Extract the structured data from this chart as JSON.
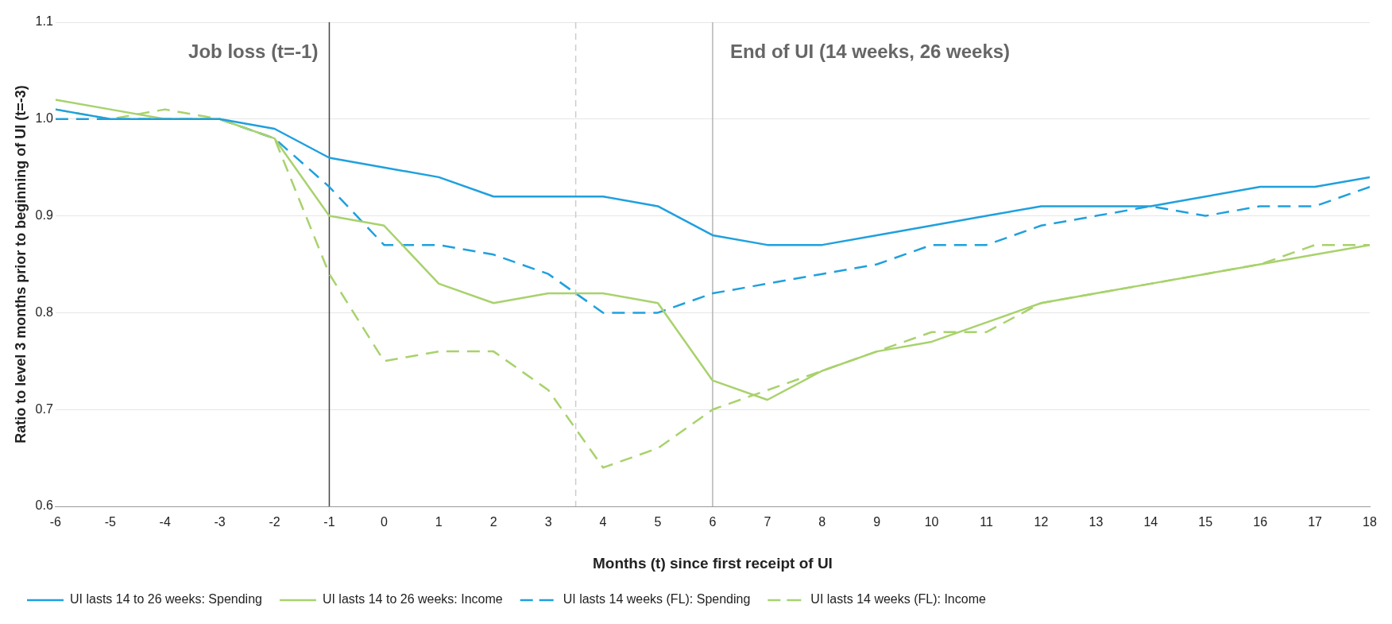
{
  "chart_data": {
    "type": "line",
    "xlabel": "Months (t) since first receipt of UI",
    "ylabel": "Ratio to level 3 months prior to beginning of UI (t=-3)",
    "x": [
      -6,
      -5,
      -4,
      -3,
      -2,
      -1,
      0,
      1,
      2,
      3,
      4,
      5,
      6,
      7,
      8,
      9,
      10,
      11,
      12,
      13,
      14,
      15,
      16,
      17,
      18
    ],
    "xlim": [
      -6,
      18
    ],
    "xticks": [
      -6,
      -5,
      -4,
      -3,
      -2,
      -1,
      0,
      1,
      2,
      3,
      4,
      5,
      6,
      7,
      8,
      9,
      10,
      11,
      12,
      13,
      14,
      15,
      16,
      17,
      18
    ],
    "ylim": [
      0.6,
      1.1
    ],
    "yticks": [
      0.6,
      0.7,
      0.8,
      0.9,
      {
        "value": 1,
        "label": "1.0"
      },
      1.1
    ],
    "grid": "y",
    "legend": "bottom",
    "marker": "none",
    "series": [
      {
        "name": "UI lasts 14 to 26 weeks: Spending",
        "color": "#1fa0de",
        "line_style": "solid",
        "values": [
          1.01,
          1.0,
          1.0,
          1.0,
          0.99,
          0.96,
          0.95,
          0.94,
          0.92,
          0.92,
          0.92,
          0.91,
          0.88,
          0.87,
          0.87,
          0.88,
          0.89,
          0.9,
          0.91,
          0.91,
          0.91,
          0.92,
          0.93,
          0.93,
          0.94
        ]
      },
      {
        "name": "UI lasts 14 to 26 weeks: Income",
        "color": "#a8d26c",
        "line_style": "solid",
        "values": [
          1.02,
          1.01,
          1.0,
          1.0,
          0.98,
          0.9,
          0.89,
          0.83,
          0.81,
          0.82,
          0.82,
          0.81,
          0.73,
          0.71,
          0.74,
          0.76,
          0.77,
          0.79,
          0.81,
          0.82,
          0.83,
          0.84,
          0.85,
          0.86,
          0.87
        ]
      },
      {
        "name": "UI lasts 14 weeks (FL): Spending",
        "color": "#1fa0de",
        "line_style": "dashed",
        "values": [
          1.0,
          1.0,
          1.0,
          1.0,
          0.98,
          0.93,
          0.87,
          0.87,
          0.86,
          0.84,
          0.8,
          0.8,
          0.82,
          0.83,
          0.84,
          0.85,
          0.87,
          0.87,
          0.89,
          0.9,
          0.91,
          0.9,
          0.91,
          0.91,
          0.93
        ]
      },
      {
        "name": "UI lasts 14 weeks (FL): Income",
        "color": "#a8d26c",
        "line_style": "dashed",
        "values": [
          1.01,
          1.0,
          1.01,
          1.0,
          0.98,
          0.84,
          0.75,
          0.76,
          0.76,
          0.72,
          0.64,
          0.66,
          0.7,
          0.72,
          0.74,
          0.76,
          0.78,
          0.78,
          0.81,
          0.82,
          0.83,
          0.84,
          0.85,
          0.87,
          0.87
        ]
      }
    ],
    "ref_lines": [
      {
        "axis": "x",
        "value": -1,
        "label": "Job loss (t=-1)",
        "color": "#444444",
        "line_style": "solid"
      },
      {
        "axis": "x",
        "value": 3.5,
        "color": "#cccccc",
        "line_style": "dashed"
      },
      {
        "axis": "x",
        "value": 6,
        "label": "End of UI (14 weeks, 26 weeks)",
        "color": "#b5b5b5",
        "line_style": "solid"
      }
    ]
  }
}
